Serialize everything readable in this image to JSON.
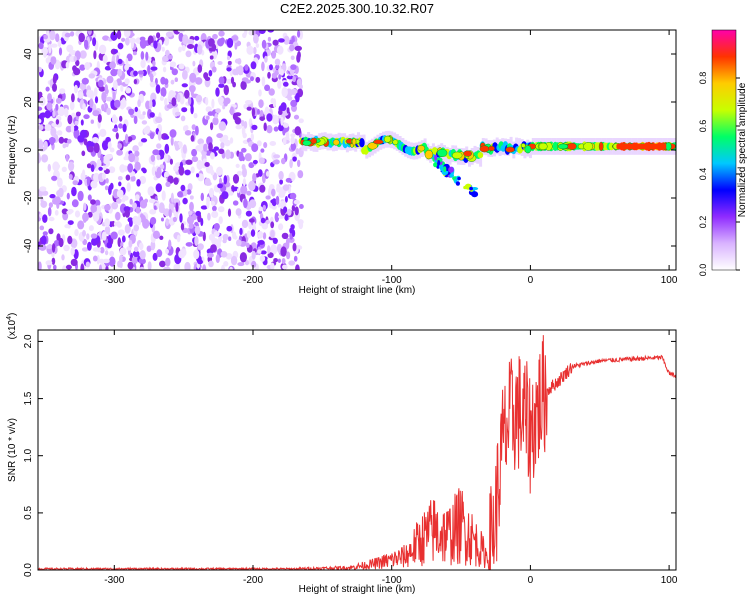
{
  "figure_title": "C2E2.2025.300.10.32.R07",
  "chart_data": [
    {
      "type": "heatmap",
      "title": "C2E2.2025.300.10.32.R07",
      "xlabel": "Height of straight line (km)",
      "ylabel": "Frequency (Hz)",
      "xlim": [
        -355,
        105
      ],
      "ylim": [
        -50,
        50
      ],
      "x_ticks": [
        -300,
        -200,
        -100,
        0,
        100
      ],
      "y_ticks": [
        -40,
        -20,
        0,
        20,
        40
      ],
      "colorbar": {
        "label": "Normalized spectral amplitude",
        "range": [
          0,
          1
        ],
        "ticks": [
          "0.0",
          "0.2",
          "0.4",
          "0.6",
          "0.8"
        ],
        "colors": [
          "#ffffff",
          "#d9b3ff",
          "#8f2bff",
          "#0000ff",
          "#00c8ff",
          "#00ff66",
          "#c8ff00",
          "#ffcc00",
          "#ff3300",
          "#ff00aa"
        ]
      },
      "regions": [
        {
          "name": "noise",
          "x": [
            -355,
            -165
          ],
          "freq": [
            -50,
            50
          ],
          "amplitude": 0.15
        },
        {
          "name": "carrier",
          "x": [
            -165,
            105
          ],
          "freq_center": 1.5,
          "amplitude_peak": 0.95
        },
        {
          "name": "scattered-branch",
          "x": [
            -70,
            -38
          ],
          "freq": [
            -20,
            -5
          ],
          "amplitude": 0.5
        }
      ]
    },
    {
      "type": "line",
      "xlabel": "Height of straight line (km)",
      "ylabel": "SNR (10 * v/v)",
      "y_multiplier": "(x10^4)",
      "xlim": [
        -355,
        105
      ],
      "ylim": [
        0,
        2.1
      ],
      "x_ticks": [
        -300,
        -200,
        -100,
        0,
        100
      ],
      "y_ticks": [
        "0.0",
        "0.5",
        "1.0",
        "1.5",
        "2.0"
      ],
      "line_color": "#e83030",
      "series": [
        {
          "name": "SNR",
          "x": [
            -355,
            -170,
            -130,
            -110,
            -90,
            -80,
            -70,
            -60,
            -50,
            -40,
            -30,
            -25,
            -20,
            -15,
            -10,
            -5,
            0,
            5,
            10,
            20,
            30,
            50,
            80,
            95,
            100,
            105
          ],
          "y": [
            0.01,
            0.01,
            0.02,
            0.06,
            0.12,
            0.25,
            0.35,
            0.3,
            0.4,
            0.25,
            0.1,
            0.5,
            1.1,
            1.3,
            1.4,
            1.35,
            1.2,
            1.4,
            1.55,
            1.65,
            1.78,
            1.83,
            1.85,
            1.86,
            1.72,
            1.7
          ]
        }
      ]
    }
  ]
}
